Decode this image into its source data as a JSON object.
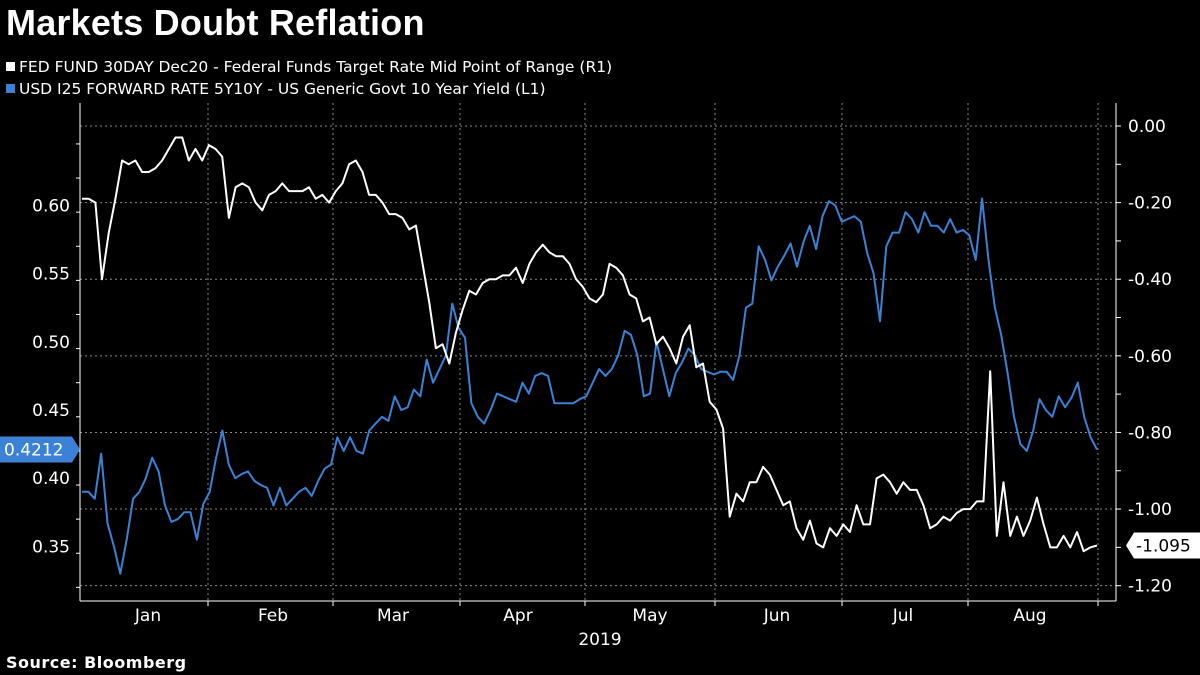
{
  "title": "Markets Doubt Reflation",
  "source": "Source:  Bloomberg",
  "colors": {
    "background": "#000000",
    "series_white": "#ffffff",
    "series_blue": "#3b82d6",
    "grid": "#8a8a8a"
  },
  "chart_data": {
    "type": "line",
    "title": "Markets Doubt Reflation",
    "xlabel": "2019",
    "x_ticks": [
      "Jan",
      "Feb",
      "Mar",
      "Apr",
      "May",
      "Jun",
      "Jul",
      "Aug"
    ],
    "left_axis": {
      "label": "L1",
      "ylim": [
        0.31,
        0.675
      ],
      "ticks": [
        "0.60",
        "0.55",
        "0.50",
        "0.45",
        "0.40",
        "0.35"
      ],
      "tick_values": [
        0.6,
        0.55,
        0.5,
        0.45,
        0.4,
        0.35
      ]
    },
    "right_axis": {
      "label": "R1",
      "ylim": [
        -1.24,
        0.06
      ],
      "ticks": [
        "0.00",
        "-0.20",
        "-0.40",
        "-0.60",
        "-0.80",
        "-1.00",
        "-1.20"
      ],
      "tick_values": [
        0.0,
        -0.2,
        -0.4,
        -0.6,
        -0.8,
        -1.0,
        -1.2
      ]
    },
    "grid": true,
    "legend_position": "top-left",
    "series": [
      {
        "name": "FED FUND 30DAY Dec20 - Federal Funds Target Rate Mid Point of Range  (R1)",
        "axis": "right",
        "color": "#ffffff",
        "last_value_label": "-1.095",
        "values": [
          -0.19,
          -0.19,
          -0.2,
          -0.4,
          -0.28,
          -0.19,
          -0.09,
          -0.1,
          -0.09,
          -0.12,
          -0.12,
          -0.11,
          -0.09,
          -0.06,
          -0.03,
          -0.03,
          -0.09,
          -0.06,
          -0.09,
          -0.05,
          -0.06,
          -0.08,
          -0.24,
          -0.16,
          -0.15,
          -0.16,
          -0.2,
          -0.22,
          -0.18,
          -0.17,
          -0.15,
          -0.17,
          -0.17,
          -0.17,
          -0.16,
          -0.19,
          -0.18,
          -0.2,
          -0.17,
          -0.15,
          -0.1,
          -0.09,
          -0.12,
          -0.18,
          -0.18,
          -0.2,
          -0.23,
          -0.23,
          -0.24,
          -0.27,
          -0.26,
          -0.36,
          -0.46,
          -0.58,
          -0.57,
          -0.62,
          -0.54,
          -0.48,
          -0.43,
          -0.44,
          -0.41,
          -0.4,
          -0.4,
          -0.39,
          -0.39,
          -0.37,
          -0.41,
          -0.36,
          -0.33,
          -0.31,
          -0.33,
          -0.34,
          -0.34,
          -0.36,
          -0.4,
          -0.42,
          -0.45,
          -0.46,
          -0.44,
          -0.36,
          -0.37,
          -0.39,
          -0.44,
          -0.45,
          -0.51,
          -0.5,
          -0.57,
          -0.55,
          -0.58,
          -0.62,
          -0.55,
          -0.52,
          -0.63,
          -0.62,
          -0.72,
          -0.74,
          -0.79,
          -1.02,
          -0.96,
          -0.98,
          -0.93,
          -0.93,
          -0.89,
          -0.91,
          -0.95,
          -0.99,
          -0.98,
          -1.05,
          -1.08,
          -1.03,
          -1.09,
          -1.1,
          -1.05,
          -1.07,
          -1.04,
          -1.06,
          -0.99,
          -1.04,
          -1.04,
          -0.92,
          -0.91,
          -0.93,
          -0.96,
          -0.93,
          -0.95,
          -0.95,
          -0.99,
          -1.05,
          -1.04,
          -1.02,
          -1.03,
          -1.01,
          -1.0,
          -1.0,
          -0.98,
          -0.98,
          -0.64,
          -1.07,
          -0.93,
          -1.07,
          -1.02,
          -1.07,
          -1.03,
          -0.97,
          -1.04,
          -1.1,
          -1.1,
          -1.07,
          -1.1,
          -1.06,
          -1.11,
          -1.1,
          -1.095
        ]
      },
      {
        "name": "USD I25 FORWARD RATE 5Y10Y - US Generic Govt 10 Year Yield  (L1)",
        "axis": "left",
        "color": "#3b82d6",
        "last_value_label": "0.4212",
        "values": [
          0.39,
          0.39,
          0.385,
          0.418,
          0.367,
          0.35,
          0.33,
          0.355,
          0.385,
          0.39,
          0.4,
          0.415,
          0.405,
          0.38,
          0.368,
          0.37,
          0.375,
          0.375,
          0.355,
          0.381,
          0.39,
          0.415,
          0.435,
          0.41,
          0.4,
          0.403,
          0.405,
          0.398,
          0.395,
          0.393,
          0.38,
          0.393,
          0.38,
          0.385,
          0.39,
          0.393,
          0.387,
          0.398,
          0.407,
          0.41,
          0.43,
          0.42,
          0.43,
          0.42,
          0.418,
          0.435,
          0.44,
          0.445,
          0.442,
          0.46,
          0.45,
          0.452,
          0.465,
          0.46,
          0.487,
          0.47,
          0.48,
          0.49,
          0.528,
          0.51,
          0.503,
          0.455,
          0.445,
          0.44,
          0.45,
          0.462,
          0.46,
          0.458,
          0.456,
          0.47,
          0.462,
          0.475,
          0.477,
          0.475,
          0.455,
          0.455,
          0.455,
          0.455,
          0.458,
          0.46,
          0.47,
          0.48,
          0.475,
          0.48,
          0.49,
          0.508,
          0.505,
          0.49,
          0.46,
          0.462,
          0.5,
          0.48,
          0.46,
          0.477,
          0.485,
          0.495,
          0.49,
          0.48,
          0.478,
          0.476,
          0.478,
          0.478,
          0.472,
          0.49,
          0.525,
          0.528,
          0.57,
          0.56,
          0.545,
          0.555,
          0.563,
          0.572,
          0.555,
          0.573,
          0.585,
          0.568,
          0.592,
          0.603,
          0.6,
          0.588,
          0.59,
          0.592,
          0.588,
          0.565,
          0.55,
          0.515,
          0.57,
          0.58,
          0.58,
          0.595,
          0.59,
          0.58,
          0.595,
          0.585,
          0.585,
          0.58,
          0.59,
          0.58,
          0.582,
          0.578,
          0.56,
          0.605,
          0.56,
          0.525,
          0.505,
          0.477,
          0.445,
          0.425,
          0.42,
          0.435,
          0.458,
          0.45,
          0.445,
          0.46,
          0.452,
          0.459,
          0.47,
          0.445,
          0.43,
          0.421
        ]
      }
    ]
  }
}
